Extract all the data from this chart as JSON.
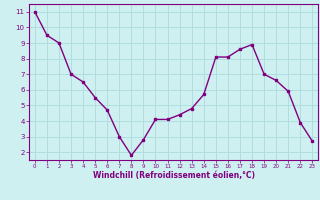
{
  "x": [
    0,
    1,
    2,
    3,
    4,
    5,
    6,
    7,
    8,
    9,
    10,
    11,
    12,
    13,
    14,
    15,
    16,
    17,
    18,
    19,
    20,
    21,
    22,
    23
  ],
  "y": [
    11.0,
    9.5,
    9.0,
    7.0,
    6.5,
    5.5,
    4.7,
    3.0,
    1.8,
    2.8,
    4.1,
    4.1,
    4.4,
    4.8,
    5.7,
    8.1,
    8.1,
    8.6,
    8.9,
    7.0,
    6.6,
    5.9,
    3.9,
    2.7
  ],
  "line_color": "#800080",
  "marker": "s",
  "marker_size": 2,
  "bg_color": "#cff0f0",
  "grid_color": "#b0dede",
  "xlabel": "Windchill (Refroidissement éolien,°C)",
  "xlabel_color": "#800080",
  "tick_color": "#800080",
  "ylim": [
    1.5,
    11.5
  ],
  "xlim": [
    -0.5,
    23.5
  ],
  "yticks": [
    2,
    3,
    4,
    5,
    6,
    7,
    8,
    9,
    10,
    11
  ],
  "xticks": [
    0,
    1,
    2,
    3,
    4,
    5,
    6,
    7,
    8,
    9,
    10,
    11,
    12,
    13,
    14,
    15,
    16,
    17,
    18,
    19,
    20,
    21,
    22,
    23
  ],
  "spine_color": "#800080",
  "line_width": 1.0
}
